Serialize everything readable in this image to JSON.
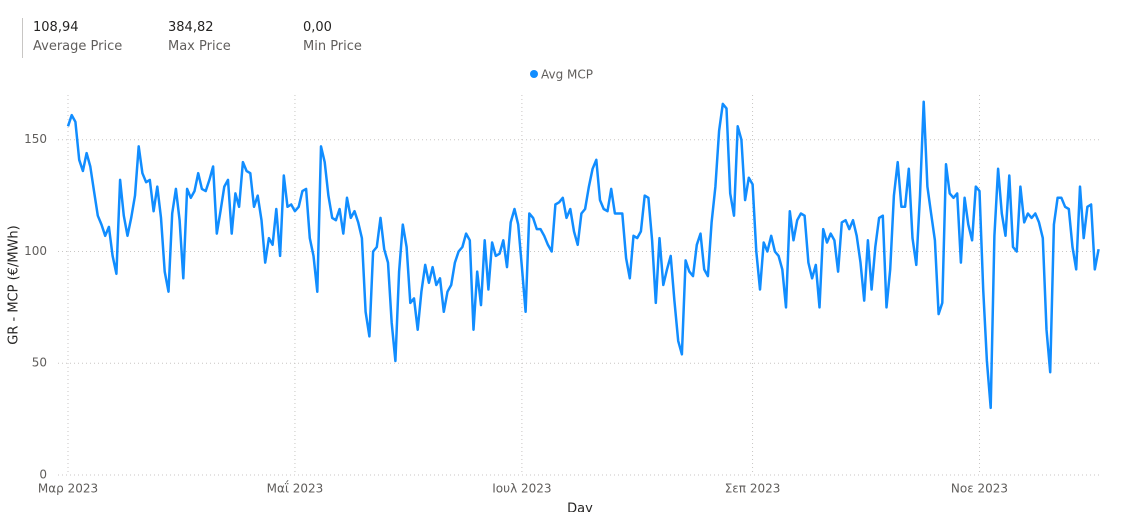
{
  "cards": [
    {
      "value": "108,94",
      "label": "Average Price"
    },
    {
      "value": "384,82",
      "label": "Max Price"
    },
    {
      "value": "0,00",
      "label": "Min Price"
    }
  ],
  "chart_data": {
    "type": "line",
    "x_label": "Day",
    "y_label": "GR - MCP (€/MWh)",
    "legend": "top",
    "grid": true,
    "xlim": [
      0,
      279
    ],
    "xticks": [
      {
        "value": 0,
        "label": "Μαρ 2023"
      },
      {
        "value": 61,
        "label": "Μαΐ 2023"
      },
      {
        "value": 122,
        "label": "Ιουλ 2023"
      },
      {
        "value": 184,
        "label": "Σεπ 2023"
      },
      {
        "value": 245,
        "label": "Νοε 2023"
      }
    ],
    "ylim": [
      0,
      170
    ],
    "yticks": [
      0,
      50,
      100,
      150
    ],
    "series": [
      {
        "name": "Avg MCP",
        "color": "#118DFF",
        "values": [
          156,
          161,
          158,
          141,
          136,
          144,
          138,
          127,
          116,
          112,
          107,
          111,
          98,
          90,
          132,
          116,
          107,
          115,
          125,
          147,
          135,
          131,
          132,
          118,
          129,
          115,
          91,
          82,
          117,
          128,
          114,
          88,
          128,
          124,
          127,
          135,
          128,
          127,
          132,
          138,
          108,
          118,
          129,
          132,
          108,
          126,
          120,
          140,
          136,
          135,
          120,
          125,
          114,
          95,
          106,
          103,
          119,
          98,
          134,
          120,
          121,
          118,
          120,
          127,
          128,
          106,
          98,
          82,
          147,
          140,
          125,
          115,
          114,
          119,
          108,
          124,
          115,
          118,
          113,
          106,
          73,
          62,
          100,
          102,
          115,
          101,
          95,
          68,
          51,
          91,
          112,
          102,
          77,
          79,
          65,
          82,
          94,
          86,
          93,
          85,
          88,
          73,
          82,
          85,
          95,
          100,
          102,
          108,
          105,
          65,
          91,
          76,
          105,
          83,
          104,
          98,
          99,
          105,
          93,
          113,
          119,
          112,
          93,
          73,
          117,
          115,
          110,
          110,
          107,
          103,
          100,
          121,
          122,
          124,
          115,
          119,
          109,
          103,
          117,
          119,
          129,
          137,
          141,
          123,
          119,
          118,
          128,
          117,
          117,
          117,
          97,
          88,
          107,
          106,
          109,
          125,
          124,
          105,
          77,
          106,
          85,
          92,
          98,
          78,
          60,
          54,
          96,
          91,
          89,
          103,
          108,
          92,
          89,
          113,
          129,
          154,
          166,
          164,
          126,
          116,
          156,
          150,
          123,
          133,
          130,
          100,
          83,
          104,
          100,
          107,
          100,
          98,
          92,
          75,
          118,
          105,
          114,
          117,
          116,
          95,
          88,
          94,
          75,
          110,
          104,
          108,
          105,
          91,
          113,
          114,
          110,
          114,
          107,
          95,
          78,
          105,
          83,
          102,
          115,
          116,
          75,
          92,
          125,
          140,
          120,
          120,
          137,
          106,
          94,
          125,
          167,
          129,
          117,
          105,
          72,
          77,
          139,
          126,
          124,
          126,
          95,
          124,
          112,
          105,
          129,
          127,
          83,
          51,
          30,
          107,
          137,
          117,
          107,
          134,
          102,
          100,
          129,
          113,
          117,
          115,
          117,
          113,
          106,
          65,
          46,
          112,
          124,
          124,
          120,
          119,
          102,
          92,
          129,
          106,
          120,
          121,
          92,
          101
        ]
      }
    ]
  }
}
